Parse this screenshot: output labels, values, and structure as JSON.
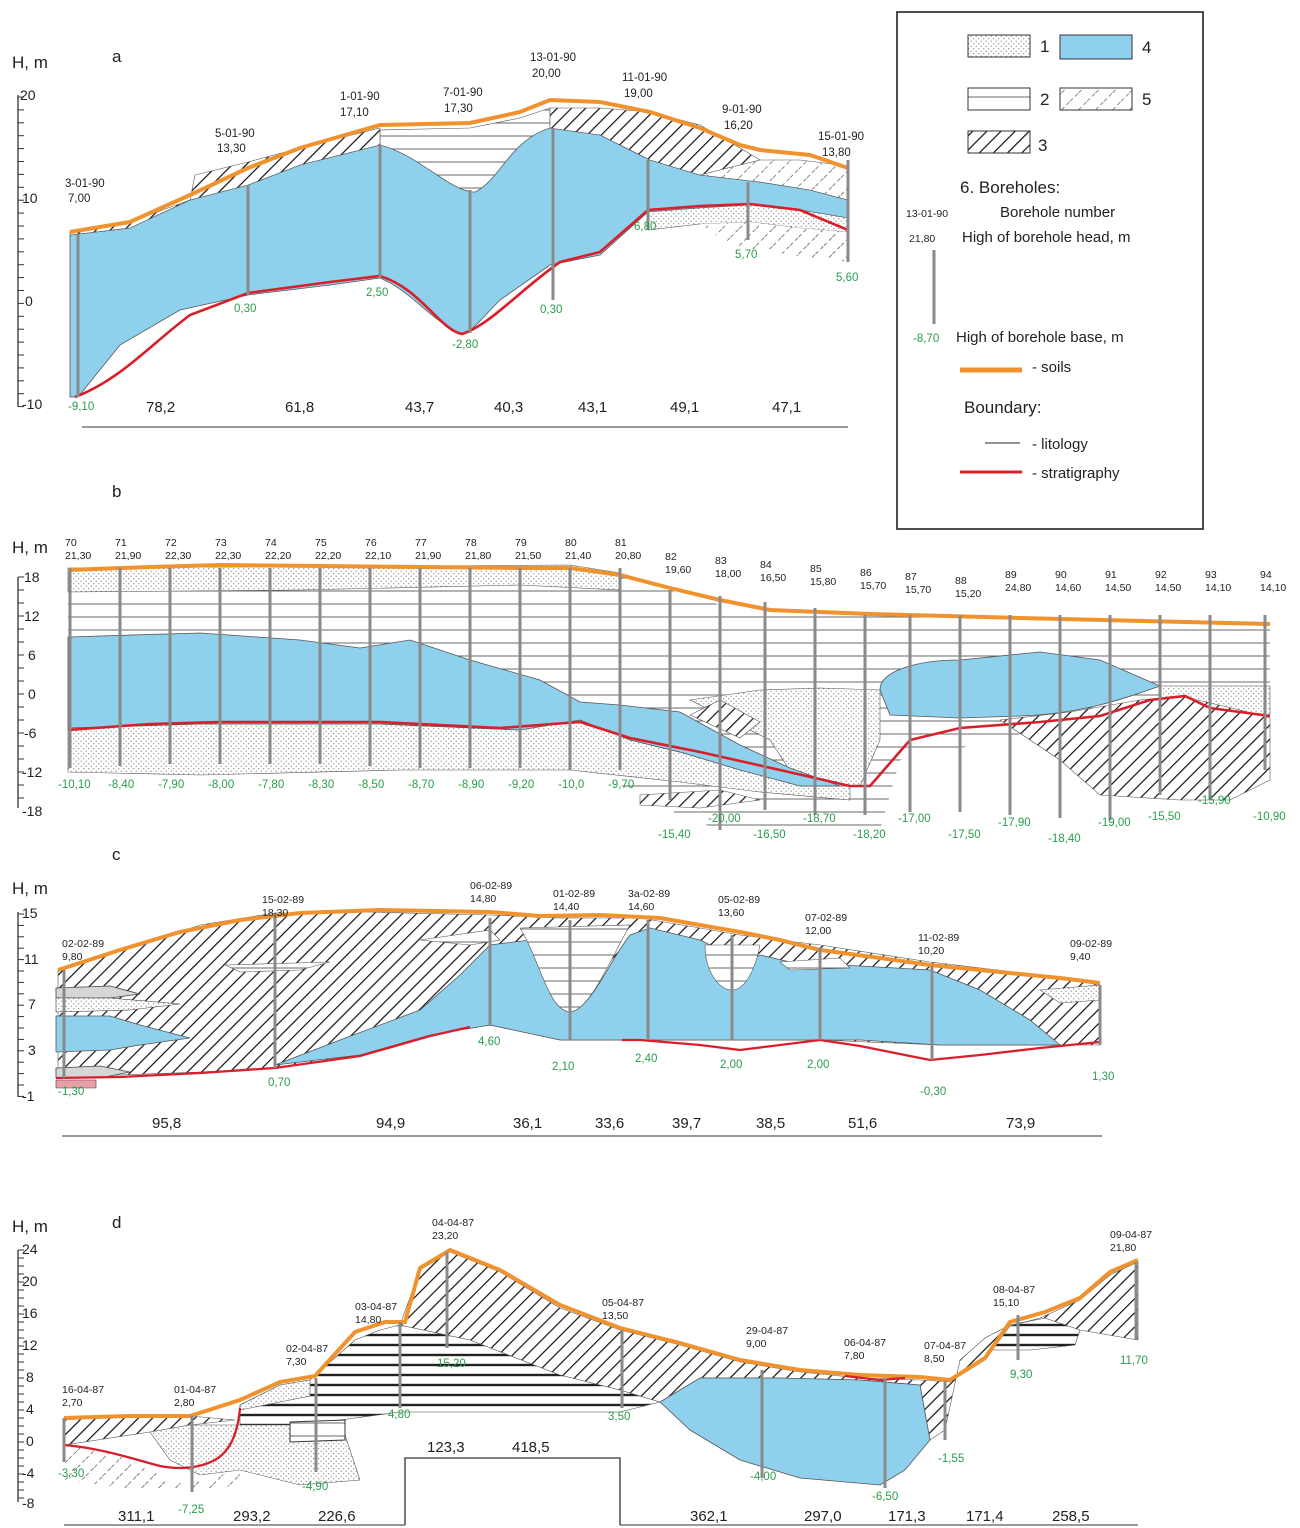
{
  "colors": {
    "water": "#8fd0ec",
    "soils": "#f0922e",
    "stratigraphy": "#d81f2a",
    "litology": "#666666",
    "borehole": "#8a8a8a",
    "base_value": "#2a9d4a"
  },
  "legend": {
    "items": [
      {
        "num": "1",
        "pattern": "dots"
      },
      {
        "num": "2",
        "pattern": "hlines"
      },
      {
        "num": "3",
        "pattern": "hatch-dense"
      },
      {
        "num": "4",
        "pattern": "water"
      },
      {
        "num": "5",
        "pattern": "hatch-dashed"
      }
    ],
    "boreholes_title": "6. Boreholes:",
    "example_number": "13-01-90",
    "example_head": "21,80",
    "example_base": "-8,70",
    "borehole_number_label": "Borehole number",
    "head_label": "High of borehole head, m",
    "base_label": "High of borehole base, m",
    "soils_label": "- soils",
    "boundary_title": "Boundary:",
    "litology_label": "- litology",
    "stratigraphy_label": "- stratigraphy"
  },
  "sections": {
    "a": {
      "letter": "a",
      "y_label": "H, m",
      "y_ticks": [
        "20",
        "10",
        "0",
        "-10"
      ],
      "boreholes": [
        {
          "id": "3-01-90",
          "head": "7,00",
          "base": "-9,10"
        },
        {
          "id": "5-01-90",
          "head": "13,30",
          "base": "0,30"
        },
        {
          "id": "1-01-90",
          "head": "17,10",
          "base": "2,50"
        },
        {
          "id": "7-01-90",
          "head": "17,30",
          "base": "-2,80"
        },
        {
          "id": "13-01-90",
          "head": "20,00",
          "base": "0,30"
        },
        {
          "id": "11-01-90",
          "head": "19,00",
          "base": "6,80"
        },
        {
          "id": "9-01-90",
          "head": "16,20",
          "base": "5,70"
        },
        {
          "id": "15-01-90",
          "head": "13,80",
          "base": "5,60"
        }
      ],
      "distances": [
        "78,2",
        "61,8",
        "43,7",
        "40,3",
        "43,1",
        "49,1",
        "47,1"
      ]
    },
    "b": {
      "letter": "b",
      "y_label": "H, m",
      "y_ticks": [
        "18",
        "12",
        "6",
        "0",
        "-6",
        "-12",
        "-18"
      ],
      "boreholes": [
        {
          "id": "70",
          "head": "21,30",
          "base": "-10,10"
        },
        {
          "id": "71",
          "head": "21,90",
          "base": "-8,40"
        },
        {
          "id": "72",
          "head": "22,30",
          "base": "-7,90"
        },
        {
          "id": "73",
          "head": "22,30",
          "base": "-8,00"
        },
        {
          "id": "74",
          "head": "22,20",
          "base": "-7,80"
        },
        {
          "id": "75",
          "head": "22,20",
          "base": "-8,30"
        },
        {
          "id": "76",
          "head": "22,10",
          "base": "-8,50"
        },
        {
          "id": "77",
          "head": "21,90",
          "base": "-8,70"
        },
        {
          "id": "78",
          "head": "21,80",
          "base": "-8,90"
        },
        {
          "id": "79",
          "head": "21,50",
          "base": "-9,20"
        },
        {
          "id": "80",
          "head": "21,40",
          "base": "-10,0"
        },
        {
          "id": "81",
          "head": "20,80",
          "base": "-9,70"
        },
        {
          "id": "82",
          "head": "19,60",
          "base": "-15,40"
        },
        {
          "id": "83",
          "head": "18,00",
          "base": "-20,00"
        },
        {
          "id": "84",
          "head": "16,50",
          "base": "-16,50"
        },
        {
          "id": "85",
          "head": "15,80",
          "base": "-18,70"
        },
        {
          "id": "86",
          "head": "15,70",
          "base": "-18,20"
        },
        {
          "id": "87",
          "head": "15,70",
          "base": "-17,00"
        },
        {
          "id": "88",
          "head": "15,20",
          "base": "-17,50"
        },
        {
          "id": "89",
          "head": "24,80",
          "base": "-17,90"
        },
        {
          "id": "90",
          "head": "14,60",
          "base": "-18,40"
        },
        {
          "id": "91",
          "head": "14,50",
          "base": "-19,00"
        },
        {
          "id": "92",
          "head": "14,50",
          "base": "-15,50"
        },
        {
          "id": "93",
          "head": "14,10",
          "base": "-15,90"
        },
        {
          "id": "94",
          "head": "14,10",
          "base": "-10,90"
        }
      ]
    },
    "c": {
      "letter": "c",
      "y_label": "H, m",
      "y_ticks": [
        "15",
        "11",
        "7",
        "3",
        "-1"
      ],
      "boreholes": [
        {
          "id": "02-02-89",
          "head": "9,80",
          "base": "-1,30"
        },
        {
          "id": "15-02-89",
          "head": "18,30",
          "base": "0,70"
        },
        {
          "id": "06-02-89",
          "head": "14,80",
          "base": "4,60"
        },
        {
          "id": "01-02-89",
          "head": "14,40",
          "base": "2,10"
        },
        {
          "id": "3a-02-89",
          "head": "14,60",
          "base": "2,40"
        },
        {
          "id": "05-02-89",
          "head": "13,60",
          "base": "2,00"
        },
        {
          "id": "07-02-89",
          "head": "12,00",
          "base": "2,00"
        },
        {
          "id": "11-02-89",
          "head": "10,20",
          "base": "-0,30"
        },
        {
          "id": "09-02-89",
          "head": "9,40",
          "base": "1,30"
        }
      ],
      "distances": [
        "95,8",
        "94,9",
        "36,1",
        "33,6",
        "39,7",
        "38,5",
        "51,6",
        "73,9"
      ]
    },
    "d": {
      "letter": "d",
      "y_label": "H, m",
      "y_ticks": [
        "24",
        "20",
        "16",
        "12",
        "8",
        "4",
        "0",
        "-4",
        "-8"
      ],
      "boreholes": [
        {
          "id": "16-04-87",
          "head": "2,70",
          "base": "-3,30"
        },
        {
          "id": "01-04-87",
          "head": "2,80",
          "base": "-7,25"
        },
        {
          "id": "02-04-87",
          "head": "7,30",
          "base": "-4,90"
        },
        {
          "id": "03-04-87",
          "head": "14,80",
          "base": "4,80"
        },
        {
          "id": "04-04-87",
          "head": "23,20",
          "base": "15,20"
        },
        {
          "id": "05-04-87",
          "head": "13,50",
          "base": "3,50"
        },
        {
          "id": "29-04-87",
          "head": "9,00",
          "base": "-4,00"
        },
        {
          "id": "06-04-87",
          "head": "7,80",
          "base": "-6,50"
        },
        {
          "id": "07-04-87",
          "head": "8,50",
          "base": "-1,55"
        },
        {
          "id": "08-04-87",
          "head": "15,10",
          "base": "9,30"
        },
        {
          "id": "09-04-87",
          "head": "21,80",
          "base": "11,70"
        }
      ],
      "distances": [
        "311,1",
        "293,2",
        "226,6",
        "123,3",
        "418,5",
        "362,1",
        "297,0",
        "171,3",
        "171,4",
        "258,5"
      ]
    }
  }
}
